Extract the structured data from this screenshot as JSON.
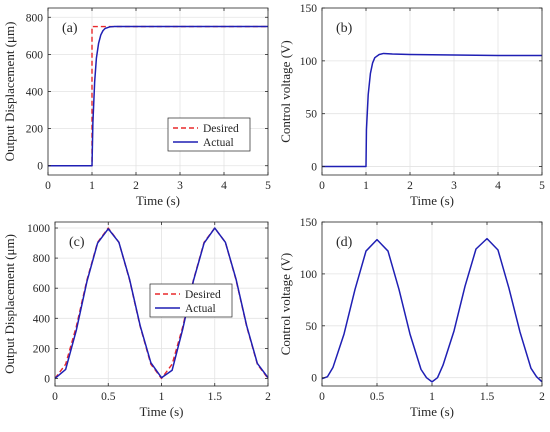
{
  "colors": {
    "desired": "#e8282b",
    "actual": "#1f1fb4",
    "grid": "#e3e3e3",
    "axis": "#262626"
  },
  "chart_data": [
    {
      "type": "line",
      "panel": "(a)",
      "xlabel": "Time (s)",
      "ylabel": "Output Displacement (μm)",
      "xlim": [
        0,
        5
      ],
      "ylim": [
        -50,
        850
      ],
      "xticks": [
        0,
        1,
        2,
        3,
        4,
        5
      ],
      "xtick_labels": [
        "0",
        "1",
        "2",
        "3",
        "4",
        "5"
      ],
      "yticks": [
        0,
        200,
        400,
        600,
        800
      ],
      "ytick_labels": [
        "0",
        "200",
        "400",
        "600",
        "800"
      ],
      "grid": true,
      "legend": "lower-right",
      "series": [
        {
          "name": "Desired",
          "style": "dashed",
          "x": [
            0,
            1,
            1,
            5
          ],
          "y": [
            0,
            0,
            750,
            750
          ]
        },
        {
          "name": "Actual",
          "style": "solid",
          "x": [
            0,
            1,
            1.02,
            1.06,
            1.1,
            1.15,
            1.2,
            1.25,
            1.3,
            1.4,
            1.5,
            2,
            3,
            4,
            5
          ],
          "y": [
            0,
            0,
            230,
            450,
            580,
            660,
            705,
            728,
            740,
            748,
            750,
            750,
            750,
            750,
            750
          ]
        }
      ]
    },
    {
      "type": "line",
      "panel": "(b)",
      "xlabel": "Time (s)",
      "ylabel": "Control voltage (V)",
      "xlim": [
        0,
        5
      ],
      "ylim": [
        -8,
        150
      ],
      "xticks": [
        0,
        1,
        2,
        3,
        4,
        5
      ],
      "xtick_labels": [
        "0",
        "1",
        "2",
        "3",
        "4",
        "5"
      ],
      "yticks": [
        0,
        50,
        100,
        150
      ],
      "ytick_labels": [
        "0",
        "50",
        "100",
        "150"
      ],
      "grid": true,
      "series": [
        {
          "style": "solid",
          "x": [
            0,
            1,
            1.01,
            1.05,
            1.1,
            1.15,
            1.2,
            1.3,
            1.4,
            1.6,
            2,
            3,
            4,
            5
          ],
          "y": [
            0,
            0,
            35,
            68,
            88,
            98,
            103,
            106,
            107,
            106.5,
            106,
            105.5,
            105,
            105
          ]
        }
      ]
    },
    {
      "type": "line",
      "panel": "(c)",
      "xlabel": "Time (s)",
      "ylabel": "Output Displacement (μm)",
      "xlim": [
        0,
        2
      ],
      "ylim": [
        -50,
        1040
      ],
      "xticks": [
        0,
        0.5,
        1,
        1.5,
        2
      ],
      "xtick_labels": [
        "0",
        "0.5",
        "1",
        "1.5",
        "2"
      ],
      "yticks": [
        0,
        200,
        400,
        600,
        800,
        1000
      ],
      "ytick_labels": [
        "0",
        "200",
        "400",
        "600",
        "800",
        "1000"
      ],
      "grid": true,
      "legend": "center",
      "series": [
        {
          "name": "Desired",
          "style": "dashed",
          "x": [
            0,
            0.1,
            0.2,
            0.3,
            0.4,
            0.5,
            0.6,
            0.7,
            0.8,
            0.9,
            1.0,
            1.1,
            1.2,
            1.3,
            1.4,
            1.5,
            1.6,
            1.7,
            1.8,
            1.9,
            2.0
          ],
          "y": [
            0,
            95,
            345,
            655,
            905,
            1000,
            905,
            655,
            345,
            95,
            0,
            95,
            345,
            655,
            905,
            1000,
            905,
            655,
            345,
            95,
            0
          ]
        },
        {
          "name": "Actual",
          "style": "solid",
          "x": [
            0,
            0.1,
            0.2,
            0.3,
            0.4,
            0.5,
            0.6,
            0.7,
            0.8,
            0.9,
            1.0,
            1.1,
            1.2,
            1.3,
            1.4,
            1.5,
            1.6,
            1.7,
            1.8,
            1.9,
            2.0
          ],
          "y": [
            0,
            60,
            320,
            645,
            900,
            995,
            905,
            660,
            350,
            105,
            5,
            55,
            330,
            650,
            900,
            1000,
            905,
            660,
            350,
            100,
            5
          ]
        }
      ]
    },
    {
      "type": "line",
      "panel": "(d)",
      "xlabel": "Time (s)",
      "ylabel": "Control voltage (V)",
      "xlim": [
        0,
        2
      ],
      "ylim": [
        -8,
        150
      ],
      "xticks": [
        0,
        0.5,
        1,
        1.5,
        2
      ],
      "xtick_labels": [
        "0",
        "0.5",
        "1",
        "1.5",
        "2"
      ],
      "yticks": [
        0,
        50,
        100,
        150
      ],
      "ytick_labels": [
        "0",
        "50",
        "100",
        "150"
      ],
      "grid": true,
      "series": [
        {
          "style": "solid",
          "x": [
            0,
            0.05,
            0.1,
            0.2,
            0.3,
            0.4,
            0.5,
            0.6,
            0.7,
            0.8,
            0.9,
            0.95,
            1.0,
            1.05,
            1.1,
            1.2,
            1.3,
            1.4,
            1.5,
            1.6,
            1.7,
            1.8,
            1.9,
            1.95,
            2.0
          ],
          "y": [
            -1,
            1,
            10,
            42,
            85,
            122,
            133,
            122,
            85,
            42,
            8,
            0,
            -4,
            0,
            12,
            45,
            88,
            124,
            134,
            123,
            86,
            44,
            9,
            1,
            -4
          ]
        }
      ]
    }
  ]
}
